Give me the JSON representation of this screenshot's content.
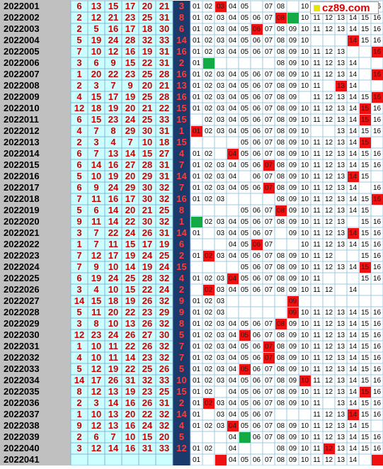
{
  "chart_data": {
    "type": "table",
    "watermark": "cz89.com",
    "colors": {
      "period_bg": "#c0c0c0",
      "red_ball_bg": "#ccffff",
      "red_ball_text": "#cc0000",
      "blue_col_bg": "#1a3a6b",
      "blue_ball_text": "#ff3b3b",
      "hit_mark": "#ee1111",
      "repeat_mark": "#11aa44",
      "grid_line": "#9ec9e3"
    },
    "blue_columns": [
      "01",
      "02",
      "03",
      "04",
      "05",
      "06",
      "07",
      "08",
      "09",
      "10",
      "11",
      "12",
      "13",
      "14",
      "15",
      "16"
    ],
    "rows": [
      {
        "period": "2022001",
        "reds": [
          6,
          13,
          15,
          17,
          20,
          21
        ],
        "blue": 3
      },
      {
        "period": "2022002",
        "reds": [
          2,
          12,
          21,
          23,
          25,
          31
        ],
        "blue": 8
      },
      {
        "period": "2022003",
        "reds": [
          2,
          5,
          16,
          17,
          18,
          30
        ],
        "blue": 6
      },
      {
        "period": "2022004",
        "reds": [
          5,
          19,
          24,
          28,
          32,
          33
        ],
        "blue": 14
      },
      {
        "period": "2022005",
        "reds": [
          7,
          10,
          12,
          16,
          19,
          31
        ],
        "blue": 16
      },
      {
        "period": "2022006",
        "reds": [
          3,
          6,
          9,
          15,
          22,
          31
        ],
        "blue": 2
      },
      {
        "period": "2022007",
        "reds": [
          1,
          20,
          22,
          23,
          25,
          28
        ],
        "blue": 16
      },
      {
        "period": "2022008",
        "reds": [
          2,
          3,
          7,
          9,
          20,
          21
        ],
        "blue": 13
      },
      {
        "period": "2022009",
        "reds": [
          4,
          15,
          17,
          19,
          25,
          28
        ],
        "blue": 16
      },
      {
        "period": "2022010",
        "reds": [
          12,
          18,
          19,
          20,
          21,
          22
        ],
        "blue": 15
      },
      {
        "period": "2022011",
        "reds": [
          6,
          15,
          23,
          24,
          25,
          33
        ],
        "blue": 15
      },
      {
        "period": "2022012",
        "reds": [
          4,
          7,
          8,
          29,
          30,
          31
        ],
        "blue": 1
      },
      {
        "period": "2022013",
        "reds": [
          2,
          3,
          4,
          7,
          10,
          18
        ],
        "blue": 15
      },
      {
        "period": "2022014",
        "reds": [
          6,
          7,
          13,
          14,
          15,
          27
        ],
        "blue": 4
      },
      {
        "period": "2022015",
        "reds": [
          6,
          14,
          16,
          27,
          28,
          31
        ],
        "blue": 7
      },
      {
        "period": "2022016",
        "reds": [
          5,
          10,
          19,
          20,
          29,
          31
        ],
        "blue": 14
      },
      {
        "period": "2022017",
        "reds": [
          6,
          9,
          24,
          29,
          30,
          32
        ],
        "blue": 7
      },
      {
        "period": "2022018",
        "reds": [
          7,
          11,
          16,
          17,
          30,
          32
        ],
        "blue": 16
      },
      {
        "period": "2022019",
        "reds": [
          5,
          6,
          14,
          20,
          21,
          25
        ],
        "blue": 8
      },
      {
        "period": "2022020",
        "reds": [
          9,
          11,
          14,
          22,
          30,
          32
        ],
        "blue": 1
      },
      {
        "period": "2022021",
        "reds": [
          3,
          7,
          22,
          24,
          26,
          31
        ],
        "blue": 14
      },
      {
        "period": "2022022",
        "reds": [
          1,
          7,
          11,
          15,
          17,
          19
        ],
        "blue": 6
      },
      {
        "period": "2022023",
        "reds": [
          7,
          12,
          17,
          19,
          24,
          25
        ],
        "blue": 2
      },
      {
        "period": "2022024",
        "reds": [
          7,
          9,
          10,
          14,
          19,
          24
        ],
        "blue": 15
      },
      {
        "period": "2022025",
        "reds": [
          6,
          19,
          24,
          25,
          28,
          32
        ],
        "blue": 4
      },
      {
        "period": "2022026",
        "reds": [
          3,
          4,
          10,
          15,
          22,
          24
        ],
        "blue": 2
      },
      {
        "period": "2022027",
        "reds": [
          14,
          15,
          18,
          19,
          26,
          32
        ],
        "blue": 9
      },
      {
        "period": "2022028",
        "reds": [
          5,
          11,
          20,
          22,
          23,
          29
        ],
        "blue": 9
      },
      {
        "period": "2022029",
        "reds": [
          3,
          8,
          10,
          13,
          26,
          32
        ],
        "blue": 8
      },
      {
        "period": "2022030",
        "reds": [
          12,
          23,
          24,
          26,
          27,
          30
        ],
        "blue": 5
      },
      {
        "period": "2022031",
        "reds": [
          1,
          10,
          11,
          22,
          26,
          32
        ],
        "blue": 7
      },
      {
        "period": "2022032",
        "reds": [
          4,
          10,
          11,
          14,
          23,
          32
        ],
        "blue": 7
      },
      {
        "period": "2022033",
        "reds": [
          5,
          12,
          19,
          22,
          25,
          26
        ],
        "blue": 5
      },
      {
        "period": "2022034",
        "reds": [
          14,
          17,
          26,
          31,
          32,
          33
        ],
        "blue": 10
      },
      {
        "period": "2022035",
        "reds": [
          8,
          12,
          13,
          19,
          23,
          25
        ],
        "blue": 15
      },
      {
        "period": "2022036",
        "reds": [
          2,
          3,
          14,
          16,
          26,
          31
        ],
        "blue": 2
      },
      {
        "period": "2022037",
        "reds": [
          1,
          10,
          13,
          20,
          22,
          32
        ],
        "blue": 14
      },
      {
        "period": "2022038",
        "reds": [
          9,
          12,
          13,
          16,
          24,
          32
        ],
        "blue": 4
      },
      {
        "period": "2022039",
        "reds": [
          2,
          6,
          7,
          10,
          15,
          20
        ],
        "blue": 5
      },
      {
        "period": "2022040",
        "reds": [
          3,
          12,
          14,
          16,
          31,
          33
        ],
        "blue": 12
      },
      {
        "period": "2022041",
        "reds": [],
        "blue": null
      }
    ],
    "repeat_marks": [
      {
        "period": "2022002",
        "column": "09"
      },
      {
        "period": "2022006",
        "column": "02"
      },
      {
        "period": "2022020",
        "column": "01"
      },
      {
        "period": "2022039",
        "column": "05"
      }
    ],
    "empty_marks": [
      {
        "period": "2022001",
        "column": "06"
      },
      {
        "period": "2022001",
        "column": "09"
      },
      {
        "period": "2022002",
        "column": "08"
      },
      {
        "period": "2022004",
        "column": "11"
      },
      {
        "period": "2022004",
        "column": "12"
      },
      {
        "period": "2022004",
        "column": "13"
      },
      {
        "period": "2022005",
        "column": "14"
      },
      {
        "period": "2022005",
        "column": "15"
      },
      {
        "period": "2022006",
        "column": "03"
      },
      {
        "period": "2022006",
        "column": "04"
      },
      {
        "period": "2022006",
        "column": "05"
      },
      {
        "period": "2022006",
        "column": "06"
      },
      {
        "period": "2022006",
        "column": "07"
      },
      {
        "period": "2022006",
        "column": "15"
      },
      {
        "period": "2022006",
        "column": "16"
      },
      {
        "period": "2022007",
        "column": "15"
      },
      {
        "period": "2022008",
        "column": "12"
      },
      {
        "period": "2022008",
        "column": "15"
      },
      {
        "period": "2022008",
        "column": "16"
      },
      {
        "period": "2022009",
        "column": "10"
      },
      {
        "period": "2022011",
        "column": "01"
      },
      {
        "period": "2022012",
        "column": "11"
      },
      {
        "period": "2022012",
        "column": "12"
      },
      {
        "period": "2022013",
        "column": "01"
      },
      {
        "period": "2022013",
        "column": "02"
      },
      {
        "period": "2022013",
        "column": "03"
      },
      {
        "period": "2022013",
        "column": "04"
      },
      {
        "period": "2022013",
        "column": "16"
      },
      {
        "period": "2022014",
        "column": "03"
      },
      {
        "period": "2022016",
        "column": "05"
      },
      {
        "period": "2022016",
        "column": "16"
      },
      {
        "period": "2022017",
        "column": "15"
      },
      {
        "period": "2022018",
        "column": "04"
      },
      {
        "period": "2022018",
        "column": "05"
      },
      {
        "period": "2022018",
        "column": "06"
      },
      {
        "period": "2022018",
        "column": "07"
      },
      {
        "period": "2022019",
        "column": "01"
      },
      {
        "period": "2022019",
        "column": "02"
      },
      {
        "period": "2022019",
        "column": "03"
      },
      {
        "period": "2022019",
        "column": "04"
      },
      {
        "period": "2022019",
        "column": "16"
      },
      {
        "period": "2022020",
        "column": "14"
      },
      {
        "period": "2022021",
        "column": "02"
      },
      {
        "period": "2022021",
        "column": "08"
      },
      {
        "period": "2022022",
        "column": "01"
      },
      {
        "period": "2022022",
        "column": "02"
      },
      {
        "period": "2022022",
        "column": "03"
      },
      {
        "period": "2022022",
        "column": "08"
      },
      {
        "period": "2022022",
        "column": "09"
      },
      {
        "period": "2022023",
        "column": "13"
      },
      {
        "period": "2022023",
        "column": "14"
      },
      {
        "period": "2022024",
        "column": "01"
      },
      {
        "period": "2022024",
        "column": "02"
      },
      {
        "period": "2022024",
        "column": "03"
      },
      {
        "period": "2022024",
        "column": "04"
      },
      {
        "period": "2022025",
        "column": "12"
      },
      {
        "period": "2022025",
        "column": "13"
      },
      {
        "period": "2022025",
        "column": "14"
      },
      {
        "period": "2022026",
        "column": "01"
      },
      {
        "period": "2022026",
        "column": "13"
      },
      {
        "period": "2022026",
        "column": "15"
      },
      {
        "period": "2022026",
        "column": "16"
      },
      {
        "period": "2022027",
        "column": "04"
      },
      {
        "period": "2022027",
        "column": "05"
      },
      {
        "period": "2022027",
        "column": "06"
      },
      {
        "period": "2022027",
        "column": "07"
      },
      {
        "period": "2022027",
        "column": "08"
      },
      {
        "period": "2022027",
        "column": "10"
      },
      {
        "period": "2022027",
        "column": "11"
      },
      {
        "period": "2022027",
        "column": "12"
      },
      {
        "period": "2022027",
        "column": "13"
      },
      {
        "period": "2022027",
        "column": "14"
      },
      {
        "period": "2022027",
        "column": "15"
      },
      {
        "period": "2022027",
        "column": "16"
      },
      {
        "period": "2022028",
        "column": "04"
      },
      {
        "period": "2022028",
        "column": "05"
      },
      {
        "period": "2022028",
        "column": "06"
      },
      {
        "period": "2022028",
        "column": "07"
      },
      {
        "period": "2022028",
        "column": "08"
      },
      {
        "period": "2022035",
        "column": "03"
      },
      {
        "period": "2022036",
        "column": "12"
      },
      {
        "period": "2022037",
        "column": "02"
      },
      {
        "period": "2022037",
        "column": "08"
      },
      {
        "period": "2022037",
        "column": "09"
      },
      {
        "period": "2022037",
        "column": "10"
      },
      {
        "period": "2022038",
        "column": "16"
      },
      {
        "period": "2022039",
        "column": "01"
      },
      {
        "period": "2022039",
        "column": "02"
      },
      {
        "period": "2022039",
        "column": "03"
      },
      {
        "period": "2022040",
        "column": "03"
      },
      {
        "period": "2022040",
        "column": "05"
      },
      {
        "period": "2022040",
        "column": "06"
      },
      {
        "period": "2022040",
        "column": "07"
      },
      {
        "period": "2022041",
        "column": "02"
      },
      {
        "period": "2022041",
        "column": "03"
      },
      {
        "period": "2022041",
        "column": "15"
      }
    ]
  }
}
